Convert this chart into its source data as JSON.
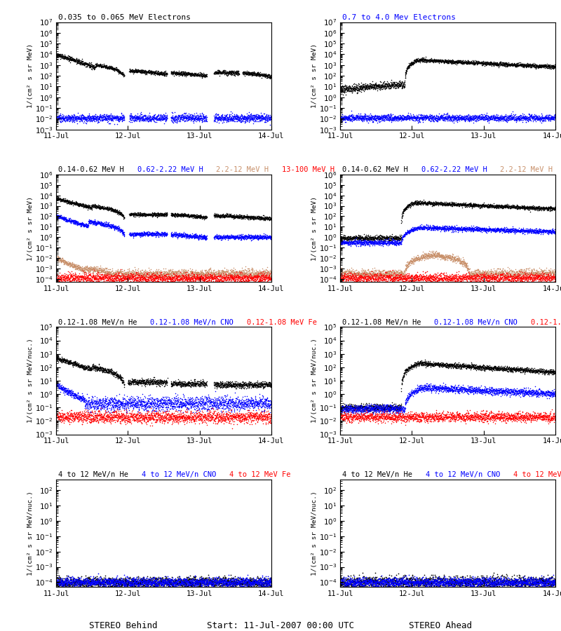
{
  "title_r0_left": "0.035 to 0.065 MeV Electrons",
  "title_r0_right": "0.7 to 4.0 Mev Electrons",
  "title_r1_parts": [
    "0.14-0.62 MeV H",
    "0.62-2.22 MeV H",
    "2.2-12 MeV H",
    "13-100 MeV H"
  ],
  "title_r1_colors": [
    "black",
    "blue",
    "#C8906A",
    "red"
  ],
  "title_r2_parts": [
    "0.12-1.08 MeV/n He",
    "0.12-1.08 MeV/n CNO",
    "0.12-1.08 MeV Fe"
  ],
  "title_r2_colors": [
    "black",
    "blue",
    "red"
  ],
  "title_r3_parts": [
    "4 to 12 MeV/n He",
    "4 to 12 MeV/n CNO",
    "4 to 12 MeV Fe"
  ],
  "title_r3_colors": [
    "black",
    "blue",
    "red"
  ],
  "xlabel_left": "STEREO Behind",
  "xlabel_center": "Start: 11-Jul-2007 00:00 UTC",
  "xlabel_right": "STEREO Ahead",
  "ylabel_elec": "1/(cm² s sr MeV)",
  "ylabel_H": "1/(cm² s sr MeV)",
  "ylabel_He": "1/(cm² s sr MeV/nuc.)",
  "ylabel_4He": "1/(cm² s sr MeV/nuc.)",
  "xticklabels": [
    "11-Jul",
    "12-Jul",
    "13-Jul",
    "14-Jul"
  ],
  "tan_color": "#C8906A",
  "background": "#FFFFFF",
  "font_mono": "monospace"
}
